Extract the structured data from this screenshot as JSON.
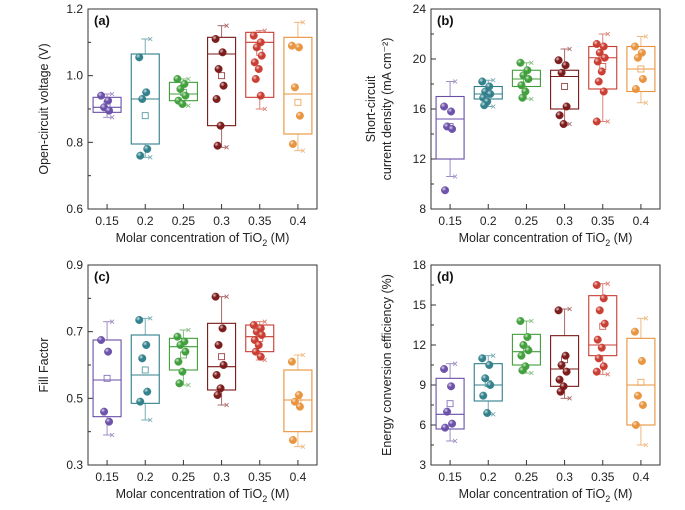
{
  "chart_data": [
    {
      "type": "box",
      "panel_label": "(a)",
      "xlabel": "Molar concentration of TiO",
      "xlabel_sub": "2",
      "xlabel_suffix": " (M)",
      "ylabel_lines": [
        "Open-circuit voltage (V)"
      ],
      "ylim": [
        0.6,
        1.2
      ],
      "yticks": [
        "0.6",
        "0.8",
        "1.0",
        "1.2"
      ],
      "minor_ticks": [
        0.7,
        0.9,
        1.1
      ],
      "categories": [
        "0.15",
        "0.2",
        "0.25",
        "0.3",
        "0.35",
        "0.4"
      ],
      "colors": [
        "#6a4fa8",
        "#2f7f8a",
        "#3f9e3a",
        "#7a1818",
        "#c93b30",
        "#e8933c"
      ],
      "boxes": [
        {
          "q1": 0.89,
          "median": 0.905,
          "q3": 0.935,
          "whisker_low": 0.875,
          "whisker_high": 0.945,
          "mean": 0.915,
          "points": [
            0.94,
            0.925,
            0.905,
            0.895
          ]
        },
        {
          "q1": 0.795,
          "median": 0.93,
          "q3": 1.065,
          "whisker_low": 0.755,
          "whisker_high": 1.11,
          "mean": 0.88,
          "points": [
            1.055,
            0.95,
            0.93,
            0.78,
            0.76
          ]
        },
        {
          "q1": 0.925,
          "median": 0.945,
          "q3": 0.98,
          "whisker_low": 0.91,
          "whisker_high": 0.99,
          "mean": 0.95,
          "points": [
            0.99,
            0.975,
            0.96,
            0.94,
            0.925,
            0.915
          ]
        },
        {
          "q1": 0.85,
          "median": 1.065,
          "q3": 1.115,
          "whisker_low": 0.785,
          "whisker_high": 1.15,
          "mean": 1.0,
          "points": [
            1.11,
            1.07,
            1.02,
            0.97,
            0.93,
            0.85,
            0.79
          ]
        },
        {
          "q1": 0.935,
          "median": 1.1,
          "q3": 1.13,
          "whisker_low": 0.9,
          "whisker_high": 1.135,
          "mean": 1.07,
          "points": [
            1.12,
            1.1,
            1.085,
            1.06,
            1.04,
            1.02,
            0.99,
            0.94
          ]
        },
        {
          "q1": 0.825,
          "median": 0.945,
          "q3": 1.115,
          "whisker_low": 0.775,
          "whisker_high": 1.16,
          "mean": 0.92,
          "points": [
            1.09,
            1.085,
            0.965,
            0.88,
            0.795
          ]
        }
      ]
    },
    {
      "type": "box",
      "panel_label": "(b)",
      "xlabel": "Molar concentration of TiO",
      "xlabel_sub": "2",
      "xlabel_suffix": " (M)",
      "ylabel_lines": [
        "Short-circuit",
        "current density (mA cm⁻²)"
      ],
      "ylim": [
        8,
        24
      ],
      "yticks": [
        "8",
        "12",
        "16",
        "20",
        "24"
      ],
      "minor_ticks": [
        10,
        14,
        18,
        22
      ],
      "categories": [
        "0.15",
        "0.2",
        "0.25",
        "0.3",
        "0.35",
        "0.4"
      ],
      "colors": [
        "#6a4fa8",
        "#2f7f8a",
        "#3f9e3a",
        "#7a1818",
        "#c93b30",
        "#e8933c"
      ],
      "boxes": [
        {
          "q1": 12.0,
          "median": 15.2,
          "q3": 17.0,
          "whisker_low": 10.6,
          "whisker_high": 18.2,
          "mean": 14.6,
          "points": [
            16.2,
            15.8,
            14.6,
            14.4,
            9.5
          ]
        },
        {
          "q1": 16.8,
          "median": 17.2,
          "q3": 17.8,
          "whisker_low": 16.2,
          "whisker_high": 18.3,
          "mean": 17.2,
          "points": [
            18.2,
            17.8,
            17.4,
            17.2,
            16.9,
            16.6,
            16.3
          ]
        },
        {
          "q1": 17.8,
          "median": 18.4,
          "q3": 19.1,
          "whisker_low": 16.8,
          "whisker_high": 19.7,
          "mean": 18.4,
          "points": [
            19.7,
            19.1,
            18.7,
            18.4,
            17.9,
            17.4,
            16.9
          ]
        },
        {
          "q1": 16.0,
          "median": 18.6,
          "q3": 19.1,
          "whisker_low": 14.8,
          "whisker_high": 20.8,
          "mean": 17.8,
          "points": [
            19.9,
            19.5,
            18.9,
            16.2,
            15.5,
            14.8
          ]
        },
        {
          "q1": 17.6,
          "median": 20.1,
          "q3": 21.0,
          "whisker_low": 15.0,
          "whisker_high": 22.0,
          "mean": 19.4,
          "points": [
            21.2,
            21.0,
            20.5,
            20.1,
            19.8,
            19.0,
            18.2,
            17.4,
            15.0
          ]
        },
        {
          "q1": 17.4,
          "median": 19.2,
          "q3": 21.0,
          "whisker_low": 16.5,
          "whisker_high": 21.8,
          "mean": 19.2,
          "points": [
            21.0,
            20.5,
            20.1,
            18.4,
            17.6
          ]
        }
      ]
    },
    {
      "type": "box",
      "panel_label": "(c)",
      "xlabel": "Molar concentration of TiO",
      "xlabel_sub": "2",
      "xlabel_suffix": " (M)",
      "ylabel_lines": [
        "Fill Factor"
      ],
      "ylim": [
        0.3,
        0.9
      ],
      "yticks": [
        "0.3",
        "0.5",
        "0.7",
        "0.9"
      ],
      "minor_ticks": [
        0.4,
        0.6,
        0.8
      ],
      "categories": [
        "0.15",
        "0.2",
        "0.25",
        "0.3",
        "0.35",
        "0.4"
      ],
      "colors": [
        "#6a4fa8",
        "#2f7f8a",
        "#3f9e3a",
        "#7a1818",
        "#c93b30",
        "#e8933c"
      ],
      "boxes": [
        {
          "q1": 0.445,
          "median": 0.555,
          "q3": 0.675,
          "whisker_low": 0.39,
          "whisker_high": 0.73,
          "mean": 0.56,
          "points": [
            0.675,
            0.64,
            0.46,
            0.43
          ]
        },
        {
          "q1": 0.485,
          "median": 0.57,
          "q3": 0.69,
          "whisker_low": 0.435,
          "whisker_high": 0.74,
          "mean": 0.585,
          "points": [
            0.735,
            0.66,
            0.62,
            0.52,
            0.49
          ]
        },
        {
          "q1": 0.585,
          "median": 0.655,
          "q3": 0.68,
          "whisker_low": 0.54,
          "whisker_high": 0.705,
          "mean": 0.63,
          "points": [
            0.685,
            0.67,
            0.66,
            0.64,
            0.61,
            0.58,
            0.545
          ]
        },
        {
          "q1": 0.525,
          "median": 0.595,
          "q3": 0.725,
          "whisker_low": 0.48,
          "whisker_high": 0.805,
          "mean": 0.625,
          "points": [
            0.805,
            0.71,
            0.66,
            0.6,
            0.57,
            0.53,
            0.51
          ]
        },
        {
          "q1": 0.64,
          "median": 0.685,
          "q3": 0.72,
          "whisker_low": 0.615,
          "whisker_high": 0.73,
          "mean": 0.68,
          "points": [
            0.72,
            0.71,
            0.7,
            0.69,
            0.675,
            0.66,
            0.64,
            0.625
          ]
        },
        {
          "q1": 0.4,
          "median": 0.495,
          "q3": 0.585,
          "whisker_low": 0.355,
          "whisker_high": 0.63,
          "mean": 0.49,
          "points": [
            0.61,
            0.51,
            0.49,
            0.475,
            0.375
          ]
        }
      ]
    },
    {
      "type": "box",
      "panel_label": "(d)",
      "xlabel": "Molar concentration of TiO",
      "xlabel_sub": "2",
      "xlabel_suffix": " (M)",
      "ylabel_lines": [
        "Energy conversion efficiency (%)"
      ],
      "ylim": [
        3,
        18
      ],
      "yticks": [
        "3",
        "6",
        "9",
        "12",
        "15",
        "18"
      ],
      "minor_ticks": [
        4.5,
        7.5,
        10.5,
        13.5,
        16.5
      ],
      "categories": [
        "0.15",
        "0.2",
        "0.25",
        "0.3",
        "0.35",
        "0.4"
      ],
      "colors": [
        "#6a4fa8",
        "#2f7f8a",
        "#3f9e3a",
        "#7a1818",
        "#c93b30",
        "#e8933c"
      ],
      "boxes": [
        {
          "q1": 5.7,
          "median": 6.8,
          "q3": 9.5,
          "whisker_low": 4.8,
          "whisker_high": 10.6,
          "mean": 7.6,
          "points": [
            10.2,
            8.9,
            7.0,
            6.1,
            5.8
          ]
        },
        {
          "q1": 7.8,
          "median": 9.0,
          "q3": 10.6,
          "whisker_low": 6.8,
          "whisker_high": 11.2,
          "mean": 9.1,
          "points": [
            11.0,
            10.5,
            9.5,
            9.0,
            8.2,
            6.9
          ]
        },
        {
          "q1": 10.5,
          "median": 11.5,
          "q3": 12.8,
          "whisker_low": 9.9,
          "whisker_high": 13.8,
          "mean": 11.7,
          "points": [
            13.8,
            12.6,
            12.0,
            11.6,
            11.2,
            10.4,
            10.1
          ]
        },
        {
          "q1": 8.9,
          "median": 10.2,
          "q3": 12.7,
          "whisker_low": 8.0,
          "whisker_high": 14.7,
          "mean": 10.9,
          "points": [
            14.6,
            11.2,
            10.5,
            10.0,
            9.4,
            8.9,
            8.5
          ]
        },
        {
          "q1": 11.2,
          "median": 12.0,
          "q3": 15.7,
          "whisker_low": 9.8,
          "whisker_high": 16.6,
          "mean": 13.4,
          "points": [
            16.5,
            15.5,
            14.6,
            13.6,
            12.4,
            11.8,
            11.0,
            10.4,
            10.0
          ]
        },
        {
          "q1": 6.0,
          "median": 9.0,
          "q3": 12.5,
          "whisker_low": 4.5,
          "whisker_high": 14.0,
          "mean": 9.2,
          "points": [
            13.0,
            10.8,
            8.2,
            7.5,
            6.0
          ]
        }
      ]
    }
  ]
}
